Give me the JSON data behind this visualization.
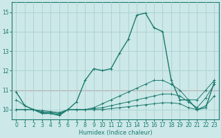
{
  "xlabel": "Humidex (Indice chaleur)",
  "bg_color": "#cce8e8",
  "grid_color": "#aad0d0",
  "line_color": "#1a7a6e",
  "red_line_y": 11.0,
  "red_line_color": "#cc3333",
  "xlim": [
    -0.5,
    23.5
  ],
  "ylim": [
    9.5,
    15.5
  ],
  "yticks": [
    10,
    11,
    12,
    13,
    14,
    15
  ],
  "xticks": [
    0,
    1,
    2,
    3,
    4,
    5,
    6,
    7,
    8,
    9,
    10,
    11,
    12,
    13,
    14,
    15,
    16,
    17,
    18,
    19,
    20,
    21,
    22,
    23
  ],
  "lines": [
    {
      "x": [
        0,
        1,
        2,
        3,
        4,
        5,
        6,
        7,
        8,
        9,
        10,
        11,
        12,
        13,
        14,
        15,
        16,
        17,
        18,
        19,
        20,
        21,
        22,
        23
      ],
      "y": [
        10.9,
        10.2,
        10.0,
        9.8,
        9.8,
        9.7,
        10.0,
        10.4,
        11.5,
        12.1,
        12.0,
        12.1,
        12.9,
        13.6,
        14.85,
        14.95,
        14.2,
        14.0,
        11.5,
        10.5,
        10.5,
        10.0,
        10.1,
        11.4
      ]
    },
    {
      "x": [
        0,
        1,
        2,
        3,
        4,
        5,
        6,
        7,
        8,
        9,
        10,
        11,
        12,
        13,
        14,
        15,
        16,
        17,
        18,
        19,
        20,
        21,
        22,
        23
      ],
      "y": [
        10.5,
        10.2,
        10.0,
        9.85,
        9.8,
        9.75,
        10.0,
        10.0,
        10.0,
        10.1,
        10.3,
        10.5,
        10.7,
        10.9,
        11.1,
        11.3,
        11.5,
        11.5,
        11.3,
        11.0,
        10.5,
        10.5,
        11.0,
        11.5
      ]
    },
    {
      "x": [
        0,
        1,
        2,
        3,
        4,
        5,
        6,
        7,
        8,
        9,
        10,
        11,
        12,
        13,
        14,
        15,
        16,
        17,
        18,
        19,
        20,
        21,
        22,
        23
      ],
      "y": [
        10.0,
        10.0,
        10.0,
        9.9,
        9.85,
        9.8,
        10.0,
        10.0,
        10.0,
        10.05,
        10.1,
        10.2,
        10.3,
        10.4,
        10.5,
        10.6,
        10.7,
        10.8,
        10.8,
        10.7,
        10.4,
        10.1,
        10.6,
        11.3
      ]
    },
    {
      "x": [
        0,
        1,
        2,
        3,
        4,
        5,
        6,
        7,
        8,
        9,
        10,
        11,
        12,
        13,
        14,
        15,
        16,
        17,
        18,
        19,
        20,
        21,
        22,
        23
      ],
      "y": [
        10.0,
        10.0,
        10.0,
        9.95,
        9.9,
        9.85,
        10.0,
        10.0,
        10.0,
        10.0,
        10.0,
        10.05,
        10.1,
        10.15,
        10.2,
        10.25,
        10.3,
        10.35,
        10.35,
        10.3,
        10.1,
        10.0,
        10.2,
        10.7
      ]
    }
  ]
}
